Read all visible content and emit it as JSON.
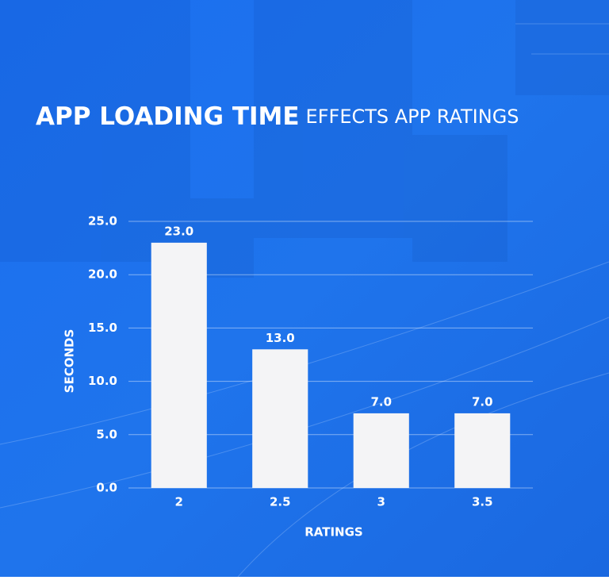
{
  "chart_data": {
    "type": "bar",
    "title": "APP LOADING TIME",
    "subtitle": "EFFECTS APP RATINGS",
    "x_label": "RATINGS",
    "y_label": "SECONDS",
    "categories": [
      "2",
      "2.5",
      "3",
      "3.5"
    ],
    "values": [
      23,
      13,
      7,
      7
    ],
    "value_labels": [
      "23.0",
      "13.0",
      "7.0",
      "7.0"
    ],
    "color": "#f4f4f6",
    "ylim": [
      0,
      25
    ],
    "yticks": [
      {
        "value": 0,
        "label": "0.0"
      },
      {
        "value": 5,
        "label": "5.0"
      },
      {
        "value": 10,
        "label": "10.0"
      },
      {
        "value": 15,
        "label": "15.0"
      },
      {
        "value": 20,
        "label": "20.0"
      },
      {
        "value": 25,
        "label": "25.0"
      }
    ],
    "grid": true
  }
}
